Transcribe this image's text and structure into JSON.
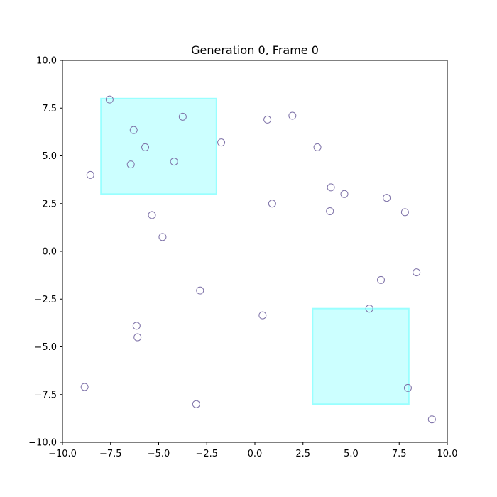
{
  "chart_data": {
    "type": "scatter",
    "title": "Generation 0, Frame 0",
    "xlabel": "",
    "ylabel": "",
    "xlim": [
      -10,
      10
    ],
    "ylim": [
      -10,
      10
    ],
    "xticks": [
      -10,
      -7.5,
      -5,
      -2.5,
      0,
      2.5,
      5,
      7.5,
      10
    ],
    "yticks": [
      -10,
      -7.5,
      -5,
      -2.5,
      0,
      2.5,
      5,
      7.5,
      10
    ],
    "xtick_labels": [
      "−10.0",
      "−7.5",
      "−5.0",
      "−2.5",
      "0.0",
      "2.5",
      "5.0",
      "7.5",
      "10.0"
    ],
    "ytick_labels": [
      "−10.0",
      "−7.5",
      "−5.0",
      "−2.5",
      "0.0",
      "2.5",
      "5.0",
      "7.5",
      "10.0"
    ],
    "grid": false,
    "regions": [
      {
        "x": [
          -8,
          -2
        ],
        "y": [
          3,
          8
        ],
        "color": "#ccffff",
        "edge_color": "#99ffff"
      },
      {
        "x": [
          3,
          8
        ],
        "y": [
          -8,
          -3
        ],
        "color": "#ccffff",
        "edge_color": "#99ffff"
      }
    ],
    "points": {
      "edge_color": "#7e72a8",
      "x": [
        -7.55,
        -6.3,
        -3.75,
        -5.7,
        -6.45,
        -4.2,
        -8.55,
        -1.75,
        0.65,
        1.95,
        3.25,
        3.95,
        4.65,
        6.85,
        7.8,
        0.9,
        3.9,
        -5.35,
        -4.8,
        8.4,
        6.55,
        5.95,
        -2.85,
        0.4,
        -6.15,
        -6.1,
        -8.85,
        -3.05,
        7.95,
        9.2
      ],
      "y": [
        7.95,
        6.35,
        7.05,
        5.45,
        4.55,
        4.7,
        4.0,
        5.7,
        6.9,
        7.1,
        5.45,
        3.35,
        3.0,
        2.8,
        2.05,
        2.5,
        2.1,
        1.9,
        0.75,
        -1.1,
        -1.5,
        -3.0,
        -2.05,
        -3.35,
        -3.9,
        -4.5,
        -7.1,
        -8.0,
        -7.15,
        -8.8
      ]
    }
  }
}
